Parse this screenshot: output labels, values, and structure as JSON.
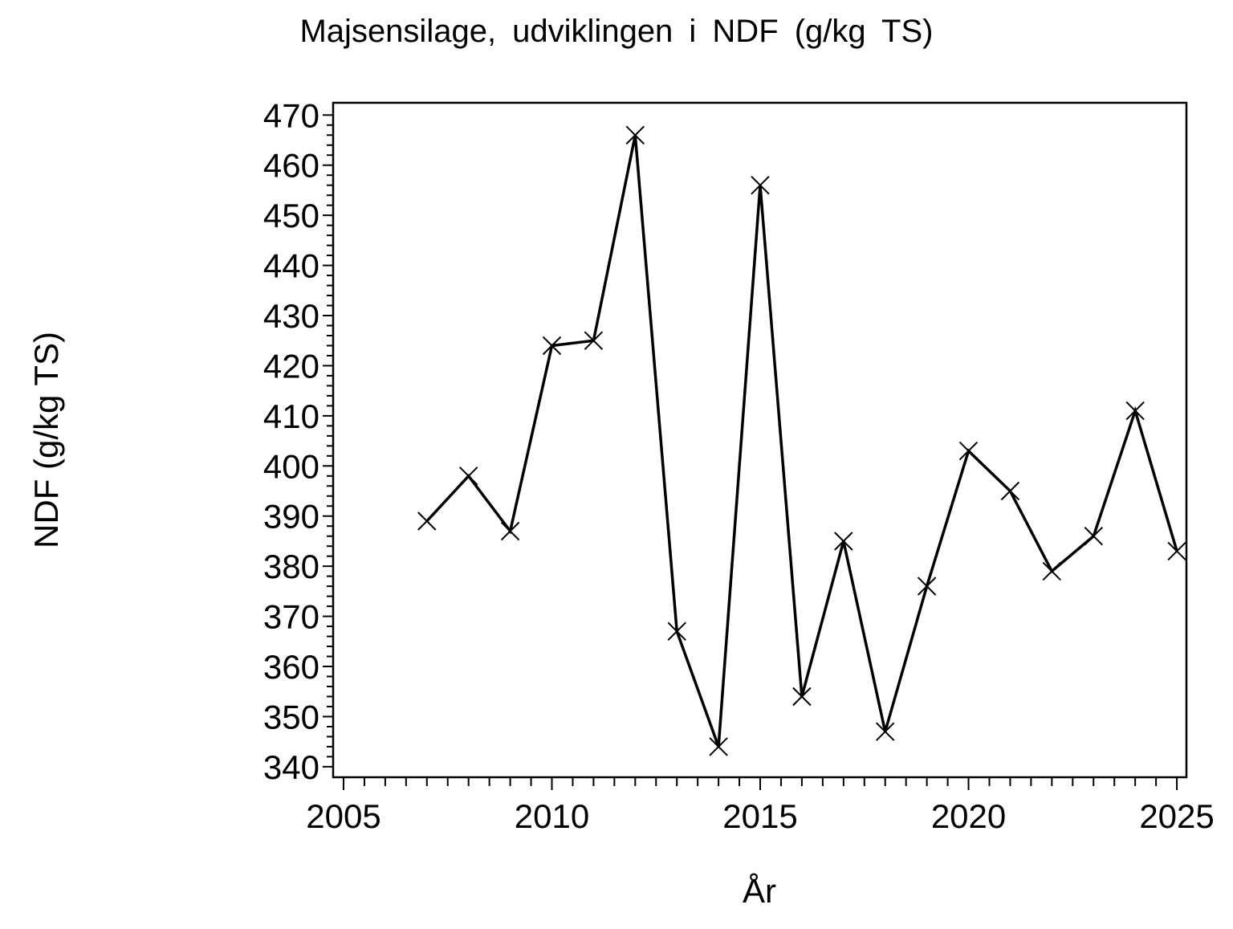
{
  "chart_data": {
    "type": "line",
    "title": "Majsensilage, udviklingen i NDF (g/kg TS)",
    "xlabel": "År",
    "ylabel": "NDF (g/kg TS)",
    "series": [
      {
        "name": "NDF",
        "x": [
          2007,
          2008,
          2009,
          2010,
          2011,
          2012,
          2013,
          2014,
          2015,
          2016,
          2017,
          2018,
          2019,
          2020,
          2021,
          2022,
          2023,
          2024,
          2025
        ],
        "y": [
          389,
          398,
          387,
          424,
          425,
          466,
          367,
          344,
          456,
          354,
          385,
          347,
          376,
          403,
          395,
          379,
          386,
          411,
          383
        ]
      }
    ],
    "xlim": [
      2004.75,
      2025.23
    ],
    "ylim": [
      337.9,
      472.45
    ],
    "xticks_major": [
      2005,
      2010,
      2015,
      2020,
      2025
    ],
    "xtick_minor_step": 0.5,
    "xtick_minor_range": [
      2005,
      2025
    ],
    "yticks_major": [
      340,
      350,
      360,
      370,
      380,
      390,
      400,
      410,
      420,
      430,
      440,
      450,
      460,
      470
    ],
    "ytick_minor_step": 2,
    "ytick_minor_range": [
      340,
      470
    ],
    "marker": "x",
    "line_color": "#000000",
    "background_color": "#ffffff",
    "grid": false,
    "legend": null
  }
}
